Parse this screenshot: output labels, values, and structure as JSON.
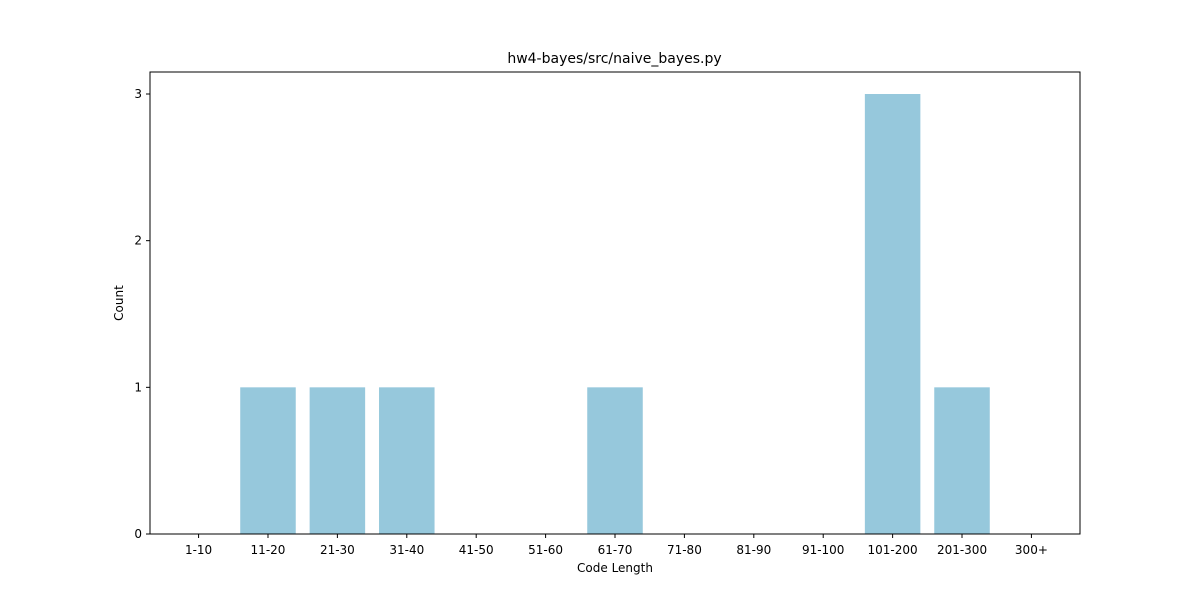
{
  "chart_data": {
    "type": "bar",
    "title": "hw4-bayes/src/naive_bayes.py",
    "xlabel": "Code Length",
    "ylabel": "Count",
    "categories": [
      "1-10",
      "11-20",
      "21-30",
      "31-40",
      "41-50",
      "51-60",
      "61-70",
      "71-80",
      "81-90",
      "91-100",
      "101-200",
      "201-300",
      "300+"
    ],
    "values": [
      0,
      1,
      1,
      1,
      0,
      0,
      1,
      0,
      0,
      0,
      3,
      1,
      0
    ],
    "yticks": [
      "0",
      "1",
      "2",
      "3"
    ],
    "ylim": [
      0,
      3.15
    ],
    "bar_color": "#96c8dc",
    "grid": false,
    "legend": "none"
  }
}
